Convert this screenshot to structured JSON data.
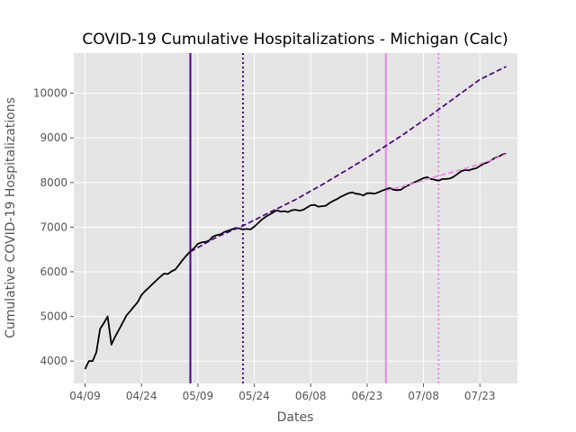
{
  "chart_data": {
    "type": "line",
    "title": "COVID-19 Cumulative Hospitalizations - Michigan (Calc)",
    "xlabel": "Dates",
    "ylabel": "Cumulative COVID-19 Hospitalizations",
    "x_tick_labels": [
      "04/09",
      "04/24",
      "05/09",
      "05/24",
      "06/08",
      "06/23",
      "07/08",
      "07/23"
    ],
    "x_tick_dates": [
      "2020-04-09",
      "2020-04-24",
      "2020-05-09",
      "2020-05-24",
      "2020-06-08",
      "2020-06-23",
      "2020-07-08",
      "2020-07-23"
    ],
    "y_ticks": [
      4000,
      5000,
      6000,
      7000,
      8000,
      9000,
      10000
    ],
    "xlim": [
      "2020-04-06",
      "2020-08-02"
    ],
    "ylim": [
      3500,
      10900
    ],
    "grid": true,
    "background": "#e5e5e5",
    "vertical_lines": [
      {
        "date": "2020-05-07",
        "color": "#4b0082",
        "style": "solid"
      },
      {
        "date": "2020-05-21",
        "color": "#4b0082",
        "style": "dotted"
      },
      {
        "date": "2020-06-28",
        "color": "#ee82ee",
        "style": "solid"
      },
      {
        "date": "2020-07-12",
        "color": "#ee82ee",
        "style": "dotted"
      }
    ],
    "series": [
      {
        "color": "#000000",
        "style": "solid",
        "points": [
          [
            "2020-04-09",
            3820
          ],
          [
            "2020-04-10",
            4000
          ],
          [
            "2020-04-11",
            4000
          ],
          [
            "2020-04-12",
            4200
          ],
          [
            "2020-04-13",
            4720
          ],
          [
            "2020-04-14",
            4850
          ],
          [
            "2020-04-15",
            5000
          ],
          [
            "2020-04-16",
            4370
          ],
          [
            "2020-04-17",
            4550
          ],
          [
            "2020-04-18",
            4700
          ],
          [
            "2020-04-19",
            4860
          ],
          [
            "2020-04-20",
            5020
          ],
          [
            "2020-04-21",
            5120
          ],
          [
            "2020-04-22",
            5220
          ],
          [
            "2020-04-23",
            5320
          ],
          [
            "2020-04-24",
            5480
          ],
          [
            "2020-04-25",
            5570
          ],
          [
            "2020-04-26",
            5650
          ],
          [
            "2020-04-27",
            5730
          ],
          [
            "2020-04-28",
            5810
          ],
          [
            "2020-04-29",
            5890
          ],
          [
            "2020-04-30",
            5960
          ],
          [
            "2020-05-01",
            5950
          ],
          [
            "2020-05-02",
            6010
          ],
          [
            "2020-05-03",
            6050
          ],
          [
            "2020-05-04",
            6160
          ],
          [
            "2020-05-05",
            6270
          ],
          [
            "2020-05-06",
            6370
          ],
          [
            "2020-05-07",
            6460
          ],
          [
            "2020-05-08",
            6530
          ],
          [
            "2020-05-09",
            6630
          ],
          [
            "2020-05-10",
            6660
          ],
          [
            "2020-05-11",
            6670
          ],
          [
            "2020-05-12",
            6700
          ],
          [
            "2020-05-13",
            6790
          ],
          [
            "2020-05-14",
            6820
          ],
          [
            "2020-05-15",
            6840
          ],
          [
            "2020-05-16",
            6890
          ],
          [
            "2020-05-17",
            6920
          ],
          [
            "2020-05-18",
            6950
          ],
          [
            "2020-05-19",
            6980
          ],
          [
            "2020-05-20",
            6970
          ],
          [
            "2020-05-21",
            6950
          ],
          [
            "2020-05-22",
            6960
          ],
          [
            "2020-05-23",
            6950
          ],
          [
            "2020-05-24",
            7010
          ],
          [
            "2020-05-25",
            7090
          ],
          [
            "2020-05-26",
            7170
          ],
          [
            "2020-05-27",
            7230
          ],
          [
            "2020-05-28",
            7280
          ],
          [
            "2020-05-29",
            7330
          ],
          [
            "2020-05-30",
            7380
          ],
          [
            "2020-05-31",
            7350
          ],
          [
            "2020-06-01",
            7360
          ],
          [
            "2020-06-02",
            7340
          ],
          [
            "2020-06-03",
            7380
          ],
          [
            "2020-06-04",
            7390
          ],
          [
            "2020-06-05",
            7370
          ],
          [
            "2020-06-06",
            7390
          ],
          [
            "2020-06-07",
            7440
          ],
          [
            "2020-06-08",
            7490
          ],
          [
            "2020-06-09",
            7500
          ],
          [
            "2020-06-10",
            7460
          ],
          [
            "2020-06-11",
            7470
          ],
          [
            "2020-06-12",
            7480
          ],
          [
            "2020-06-13",
            7540
          ],
          [
            "2020-06-14",
            7590
          ],
          [
            "2020-06-15",
            7630
          ],
          [
            "2020-06-16",
            7680
          ],
          [
            "2020-06-17",
            7720
          ],
          [
            "2020-06-18",
            7760
          ],
          [
            "2020-06-19",
            7780
          ],
          [
            "2020-06-20",
            7750
          ],
          [
            "2020-06-21",
            7740
          ],
          [
            "2020-06-22",
            7710
          ],
          [
            "2020-06-23",
            7760
          ],
          [
            "2020-06-24",
            7760
          ],
          [
            "2020-06-25",
            7750
          ],
          [
            "2020-06-26",
            7780
          ],
          [
            "2020-06-27",
            7820
          ],
          [
            "2020-06-28",
            7850
          ],
          [
            "2020-06-29",
            7880
          ],
          [
            "2020-06-30",
            7840
          ],
          [
            "2020-07-01",
            7830
          ],
          [
            "2020-07-02",
            7840
          ],
          [
            "2020-07-03",
            7900
          ],
          [
            "2020-07-04",
            7940
          ],
          [
            "2020-07-05",
            7980
          ],
          [
            "2020-07-06",
            8020
          ],
          [
            "2020-07-07",
            8060
          ],
          [
            "2020-07-08",
            8100
          ],
          [
            "2020-07-09",
            8120
          ],
          [
            "2020-07-10",
            8080
          ],
          [
            "2020-07-11",
            8060
          ],
          [
            "2020-07-12",
            8040
          ],
          [
            "2020-07-13",
            8080
          ],
          [
            "2020-07-14",
            8080
          ],
          [
            "2020-07-15",
            8090
          ],
          [
            "2020-07-16",
            8130
          ],
          [
            "2020-07-17",
            8190
          ],
          [
            "2020-07-18",
            8250
          ],
          [
            "2020-07-19",
            8280
          ],
          [
            "2020-07-20",
            8270
          ],
          [
            "2020-07-21",
            8300
          ],
          [
            "2020-07-22",
            8320
          ],
          [
            "2020-07-23",
            8370
          ],
          [
            "2020-07-24",
            8420
          ],
          [
            "2020-07-25",
            8450
          ],
          [
            "2020-07-26",
            8500
          ],
          [
            "2020-07-27",
            8550
          ],
          [
            "2020-07-28",
            8580
          ],
          [
            "2020-07-29",
            8630
          ],
          [
            "2020-07-30",
            8650
          ]
        ]
      },
      {
        "color": "#4b0082",
        "style": "dashed",
        "points": [
          [
            "2020-05-07",
            6450
          ],
          [
            "2020-05-14",
            6780
          ],
          [
            "2020-05-21",
            7030
          ],
          [
            "2020-05-28",
            7330
          ],
          [
            "2020-06-04",
            7620
          ],
          [
            "2020-06-11",
            7950
          ],
          [
            "2020-06-18",
            8300
          ],
          [
            "2020-06-25",
            8660
          ],
          [
            "2020-07-02",
            9040
          ],
          [
            "2020-07-09",
            9450
          ],
          [
            "2020-07-16",
            9880
          ],
          [
            "2020-07-23",
            10310
          ],
          [
            "2020-07-30",
            10600
          ]
        ]
      },
      {
        "color": "#ee82ee",
        "style": "dashed",
        "points": [
          [
            "2020-06-28",
            7820
          ],
          [
            "2020-07-05",
            7970
          ],
          [
            "2020-07-12",
            8150
          ],
          [
            "2020-07-19",
            8310
          ],
          [
            "2020-07-26",
            8500
          ],
          [
            "2020-07-30",
            8640
          ]
        ]
      }
    ]
  }
}
